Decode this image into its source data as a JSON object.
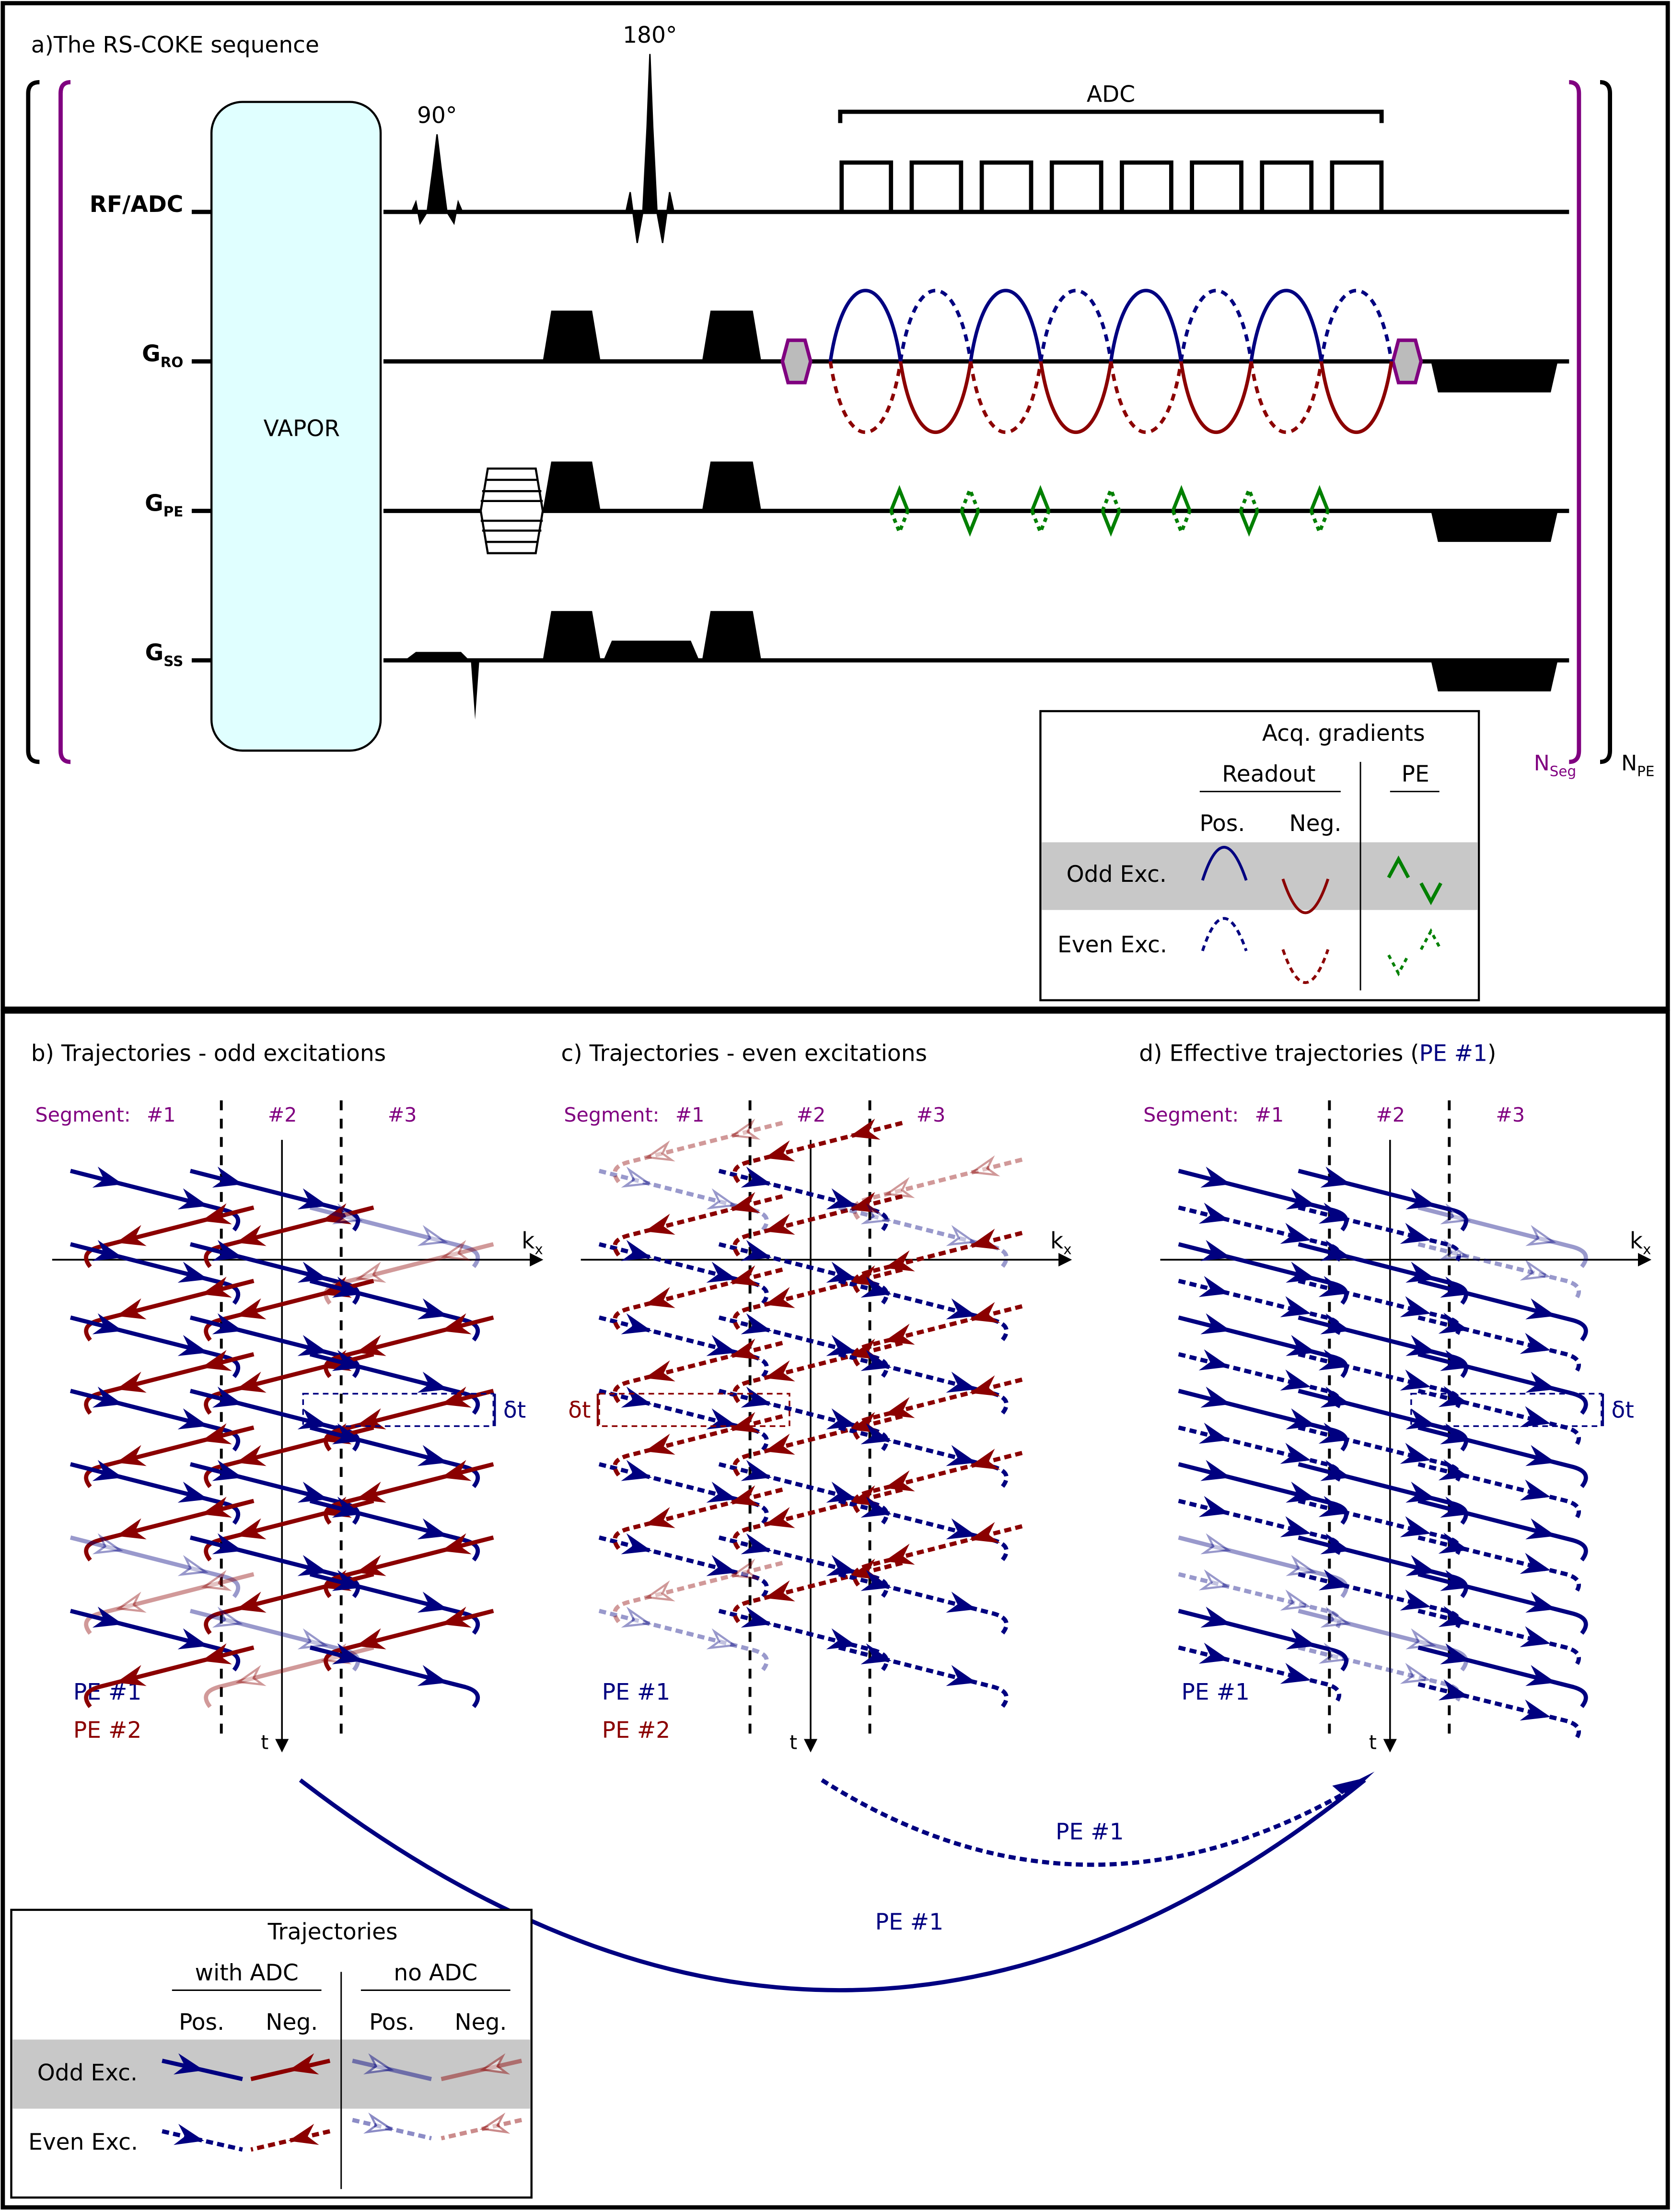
{
  "panel_a": {
    "title": "a)The RS-COKE sequence",
    "rows": {
      "rf": "RF/ADC",
      "gro_main": "G",
      "gro_sub": "RO",
      "gpe_main": "G",
      "gpe_sub": "PE",
      "gss_main": "G",
      "gss_sub": "SS"
    },
    "vapor": "VAPOR",
    "pulse_90": "90°",
    "pulse_180": "180°",
    "adc": "ADC",
    "n_seg_main": "N",
    "n_seg_sub": "Seg",
    "n_pe_main": "N",
    "n_pe_sub": "PE",
    "legend": {
      "title": "Acq. gradients",
      "readout": "Readout",
      "pe": "PE",
      "pos": "Pos.",
      "neg": "Neg.",
      "odd": "Odd Exc.",
      "even": "Even Exc."
    }
  },
  "panel_b": {
    "title": "b) Trajectories - odd excitations"
  },
  "panel_c": {
    "title": "c) Trajectories - even excitations"
  },
  "panel_d": {
    "title_prefix": "d) Effective trajectories (",
    "title_pe": "PE #1",
    "title_suffix": ")"
  },
  "common": {
    "segment": "Segment:",
    "seg1": "#1",
    "seg2": "#2",
    "seg3": "#3",
    "kx_main": "k",
    "kx_sub": "x",
    "t": "t",
    "pe1": "PE #1",
    "pe2": "PE #2",
    "delta_t": "δt"
  },
  "arrows": {
    "solid_label": "PE #1",
    "dashed_label": "PE #1"
  },
  "traj_legend": {
    "title": "Trajectories",
    "with_adc": "with ADC",
    "no_adc": "no ADC",
    "pos": "Pos.",
    "neg": "Neg.",
    "pos2": "Pos.",
    "neg2": "Neg.",
    "odd": "Odd Exc.",
    "even": "Even Exc."
  },
  "colors": {
    "blue": "#000080",
    "red": "#8b0000",
    "green": "#008000",
    "purple": "#800080",
    "vapor": "#e0ffff",
    "band": "#c8c8c8"
  }
}
